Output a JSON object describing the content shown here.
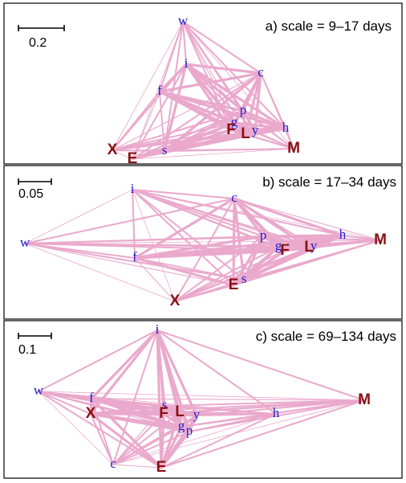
{
  "colors": {
    "edge": "#eaa9cc",
    "small_node": "#1f1fd2",
    "large_node": "#8b0f12",
    "frame": "#000000"
  },
  "panels": [
    {
      "title": "a) scale = 9–17 days",
      "scale_label": "0.2",
      "nodes": [
        {
          "id": "w",
          "label": "w",
          "kind": "small"
        },
        {
          "id": "i",
          "label": "i",
          "kind": "small"
        },
        {
          "id": "c",
          "label": "c",
          "kind": "small"
        },
        {
          "id": "f",
          "label": "f",
          "kind": "small"
        },
        {
          "id": "p",
          "label": "p",
          "kind": "small"
        },
        {
          "id": "g",
          "label": "g",
          "kind": "small"
        },
        {
          "id": "y",
          "label": "y",
          "kind": "small"
        },
        {
          "id": "h",
          "label": "h",
          "kind": "small"
        },
        {
          "id": "s",
          "label": "s",
          "kind": "small"
        },
        {
          "id": "F",
          "label": "F",
          "kind": "large"
        },
        {
          "id": "L",
          "label": "L",
          "kind": "large"
        },
        {
          "id": "M",
          "label": "M",
          "kind": "large"
        },
        {
          "id": "X",
          "label": "X",
          "kind": "large"
        },
        {
          "id": "E",
          "label": "E",
          "kind": "large"
        }
      ]
    },
    {
      "title": "b) scale = 17–34 days",
      "scale_label": "0.05",
      "nodes": [
        {
          "id": "i",
          "label": "i",
          "kind": "small"
        },
        {
          "id": "c",
          "label": "c",
          "kind": "small"
        },
        {
          "id": "w",
          "label": "w",
          "kind": "small"
        },
        {
          "id": "f",
          "label": "f",
          "kind": "small"
        },
        {
          "id": "p",
          "label": "p",
          "kind": "small"
        },
        {
          "id": "g",
          "label": "g",
          "kind": "small"
        },
        {
          "id": "y",
          "label": "y",
          "kind": "small"
        },
        {
          "id": "h",
          "label": "h",
          "kind": "small"
        },
        {
          "id": "s",
          "label": "s",
          "kind": "small"
        },
        {
          "id": "F",
          "label": "F",
          "kind": "large"
        },
        {
          "id": "L",
          "label": "L",
          "kind": "large"
        },
        {
          "id": "M",
          "label": "M",
          "kind": "large"
        },
        {
          "id": "E",
          "label": "E",
          "kind": "large"
        },
        {
          "id": "X",
          "label": "X",
          "kind": "large"
        }
      ]
    },
    {
      "title": "c) scale = 69–134 days",
      "scale_label": "0.1",
      "nodes": [
        {
          "id": "i",
          "label": "i",
          "kind": "small"
        },
        {
          "id": "w",
          "label": "w",
          "kind": "small"
        },
        {
          "id": "f",
          "label": "f",
          "kind": "small"
        },
        {
          "id": "s",
          "label": "s",
          "kind": "small"
        },
        {
          "id": "y",
          "label": "y",
          "kind": "small"
        },
        {
          "id": "g",
          "label": "g",
          "kind": "small"
        },
        {
          "id": "p",
          "label": "p",
          "kind": "small"
        },
        {
          "id": "h",
          "label": "h",
          "kind": "small"
        },
        {
          "id": "c",
          "label": "c",
          "kind": "small"
        },
        {
          "id": "X",
          "label": "X",
          "kind": "large"
        },
        {
          "id": "F",
          "label": "F",
          "kind": "large"
        },
        {
          "id": "L",
          "label": "L",
          "kind": "large"
        },
        {
          "id": "M",
          "label": "M",
          "kind": "large"
        },
        {
          "id": "E",
          "label": "E",
          "kind": "large"
        }
      ]
    }
  ]
}
